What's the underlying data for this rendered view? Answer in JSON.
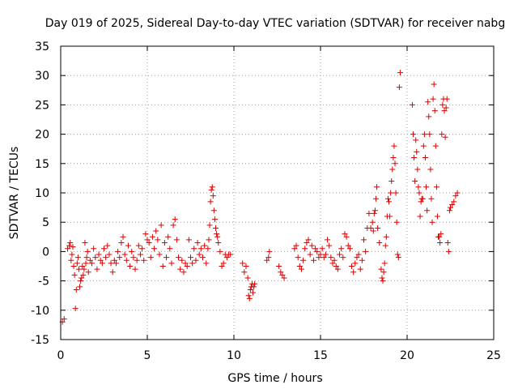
{
  "chart_data": {
    "type": "scatter",
    "title": "Day 019 of 2025, Sidereal Day-to-day VTEC variation (SDTVAR) for receiver nabg",
    "xlabel": "GPS time / hours",
    "ylabel": "SDTVAR / TECUs",
    "xlim": [
      0,
      25
    ],
    "ylim": [
      -15,
      35
    ],
    "xticks": [
      0,
      5,
      10,
      15,
      20,
      25
    ],
    "yticks": [
      -15,
      -10,
      -5,
      0,
      5,
      10,
      15,
      20,
      25,
      30,
      35
    ],
    "grid": true,
    "marker": "+",
    "color": "#e00000",
    "series": [
      {
        "name": "SDTVAR",
        "x": [
          0.1,
          0.2,
          0.4,
          0.5,
          0.55,
          0.6,
          0.65,
          0.7,
          0.75,
          0.8,
          0.85,
          0.9,
          0.95,
          1.0,
          1.05,
          1.1,
          1.15,
          1.2,
          1.25,
          1.3,
          1.35,
          1.4,
          1.45,
          1.5,
          1.55,
          1.6,
          1.7,
          1.8,
          1.9,
          2.0,
          2.1,
          2.2,
          2.3,
          2.4,
          2.5,
          2.6,
          2.7,
          2.8,
          2.9,
          3.0,
          3.1,
          3.2,
          3.3,
          3.4,
          3.5,
          3.6,
          3.7,
          3.8,
          3.9,
          4.0,
          4.1,
          4.2,
          4.3,
          4.4,
          4.5,
          4.6,
          4.7,
          4.8,
          4.9,
          5.0,
          5.1,
          5.2,
          5.3,
          5.4,
          5.5,
          5.6,
          5.7,
          5.8,
          5.9,
          6.0,
          6.1,
          6.2,
          6.3,
          6.4,
          6.5,
          6.6,
          6.7,
          6.8,
          6.9,
          7.0,
          7.1,
          7.2,
          7.3,
          7.4,
          7.5,
          7.6,
          7.7,
          7.8,
          7.9,
          8.0,
          8.1,
          8.2,
          8.3,
          8.4,
          8.5,
          8.55,
          8.6,
          8.65,
          8.7,
          8.75,
          8.8,
          8.85,
          8.9,
          8.95,
          9.0,
          9.05,
          9.1,
          9.2,
          9.3,
          9.4,
          9.5,
          9.6,
          9.7,
          9.8,
          10.5,
          10.6,
          10.7,
          10.8,
          10.85,
          10.9,
          10.95,
          11.0,
          11.05,
          11.1,
          11.15,
          11.2,
          11.9,
          12.0,
          12.05,
          12.6,
          12.7,
          12.8,
          12.9,
          13.5,
          13.6,
          13.7,
          13.8,
          13.9,
          14.0,
          14.1,
          14.2,
          14.3,
          14.4,
          14.5,
          14.6,
          14.7,
          14.8,
          14.9,
          15.0,
          15.1,
          15.2,
          15.3,
          15.4,
          15.5,
          15.6,
          15.7,
          15.8,
          15.9,
          16.0,
          16.1,
          16.2,
          16.3,
          16.4,
          16.5,
          16.6,
          16.7,
          16.8,
          16.9,
          17.0,
          17.1,
          17.2,
          17.3,
          17.4,
          17.5,
          17.6,
          17.7,
          17.8,
          17.9,
          18.0,
          18.05,
          18.1,
          18.15,
          18.2,
          18.25,
          18.3,
          18.4,
          18.5,
          18.55,
          18.6,
          18.65,
          18.7,
          18.75,
          18.8,
          18.85,
          18.9,
          18.95,
          19.0,
          19.05,
          19.1,
          19.15,
          19.2,
          19.25,
          19.3,
          19.35,
          19.4,
          19.45,
          19.5,
          19.55,
          19.6,
          20.3,
          20.35,
          20.4,
          20.45,
          20.5,
          20.55,
          20.6,
          20.65,
          20.7,
          20.75,
          20.8,
          20.85,
          20.9,
          20.95,
          21.0,
          21.05,
          21.1,
          21.15,
          21.2,
          21.25,
          21.3,
          21.35,
          21.4,
          21.45,
          21.5,
          21.55,
          21.6,
          21.65,
          21.7,
          21.75,
          21.8,
          21.85,
          21.9,
          21.95,
          22.0,
          22.05,
          22.1,
          22.15,
          22.2,
          22.25,
          22.3,
          22.35,
          22.4,
          22.45,
          22.5,
          22.6,
          22.7,
          22.8,
          22.9
        ],
        "y": [
          -12.0,
          -11.5,
          0.5,
          1.0,
          1.5,
          -1.5,
          -0.5,
          0.8,
          -2.5,
          -4.0,
          -9.7,
          -6.5,
          -2.0,
          -1.0,
          -3.0,
          -6.0,
          -5.0,
          -4.5,
          -2.5,
          -4.0,
          -3.0,
          1.5,
          -2.0,
          -1.0,
          0.0,
          -3.5,
          -1.5,
          -2.0,
          0.5,
          -1.0,
          -3.0,
          -0.5,
          -1.5,
          -2.0,
          0.5,
          -1.0,
          1.0,
          -0.5,
          -2.0,
          -3.5,
          -1.5,
          -2.0,
          0.0,
          -1.0,
          1.5,
          2.5,
          -0.5,
          -1.5,
          1.0,
          -2.5,
          0.0,
          -1.0,
          -3.0,
          -1.5,
          1.0,
          -0.5,
          0.5,
          -1.5,
          3.0,
          2.0,
          1.5,
          -1.0,
          2.5,
          0.5,
          3.5,
          2.0,
          -0.5,
          4.5,
          -2.5,
          1.5,
          -1.0,
          2.5,
          0.5,
          -2.0,
          4.5,
          5.5,
          2.0,
          -1.0,
          -3.0,
          -1.5,
          -3.5,
          -2.0,
          -2.5,
          2.0,
          -1.0,
          -2.0,
          0.5,
          -1.5,
          1.5,
          -0.5,
          0.5,
          -1.0,
          1.0,
          -2.0,
          0.5,
          2.0,
          4.5,
          8.5,
          10.5,
          11.0,
          9.5,
          7.0,
          5.5,
          4.0,
          3.0,
          2.5,
          1.5,
          0.0,
          -2.5,
          -2.0,
          -0.5,
          -1.0,
          -0.5,
          -0.5,
          -2.0,
          -3.5,
          -2.5,
          -4.5,
          -7.5,
          -8.0,
          -6.5,
          -6.0,
          -5.5,
          -7.0,
          -6.0,
          -5.5,
          -1.5,
          -1.0,
          0.0,
          -2.5,
          -3.5,
          -4.0,
          -4.5,
          0.5,
          1.0,
          -1.0,
          -2.5,
          -3.0,
          -1.5,
          0.5,
          1.5,
          2.0,
          -0.5,
          1.0,
          -1.5,
          0.5,
          0.0,
          -1.0,
          -0.5,
          0.5,
          -1.0,
          -0.5,
          2.0,
          1.0,
          -1.0,
          -2.0,
          -1.5,
          -2.5,
          -3.0,
          -0.5,
          0.5,
          -1.0,
          3.0,
          2.5,
          1.0,
          0.5,
          -2.5,
          -3.5,
          -2.0,
          -1.0,
          -0.5,
          -3.0,
          -1.5,
          2.0,
          0.0,
          4.0,
          6.5,
          4.0,
          5.0,
          3.5,
          6.5,
          7.0,
          9.0,
          11.0,
          4.0,
          1.5,
          -3.0,
          -4.5,
          -5.0,
          -3.5,
          -2.0,
          1.0,
          2.5,
          6.0,
          9.0,
          8.5,
          6.0,
          10.0,
          12.0,
          14.0,
          16.0,
          18.0,
          15.0,
          10.0,
          5.0,
          -0.5,
          -1.0,
          28.0,
          30.5,
          25.0,
          20.0,
          16.0,
          12.0,
          19.0,
          17.0,
          14.0,
          11.0,
          10.0,
          6.0,
          8.5,
          9.0,
          9.0,
          18.0,
          20.0,
          16.0,
          11.0,
          7.0,
          25.5,
          23.0,
          20.0,
          14.0,
          9.0,
          5.0,
          26.0,
          28.5,
          24.0,
          18.0,
          11.0,
          6.0,
          2.5,
          2.5,
          1.5,
          3.0,
          20.0,
          25.0,
          26.0,
          24.0,
          19.5,
          24.5,
          26.0,
          1.5,
          0.0,
          7.0,
          7.5,
          8.0,
          8.5,
          9.5,
          10.0
        ]
      }
    ]
  }
}
